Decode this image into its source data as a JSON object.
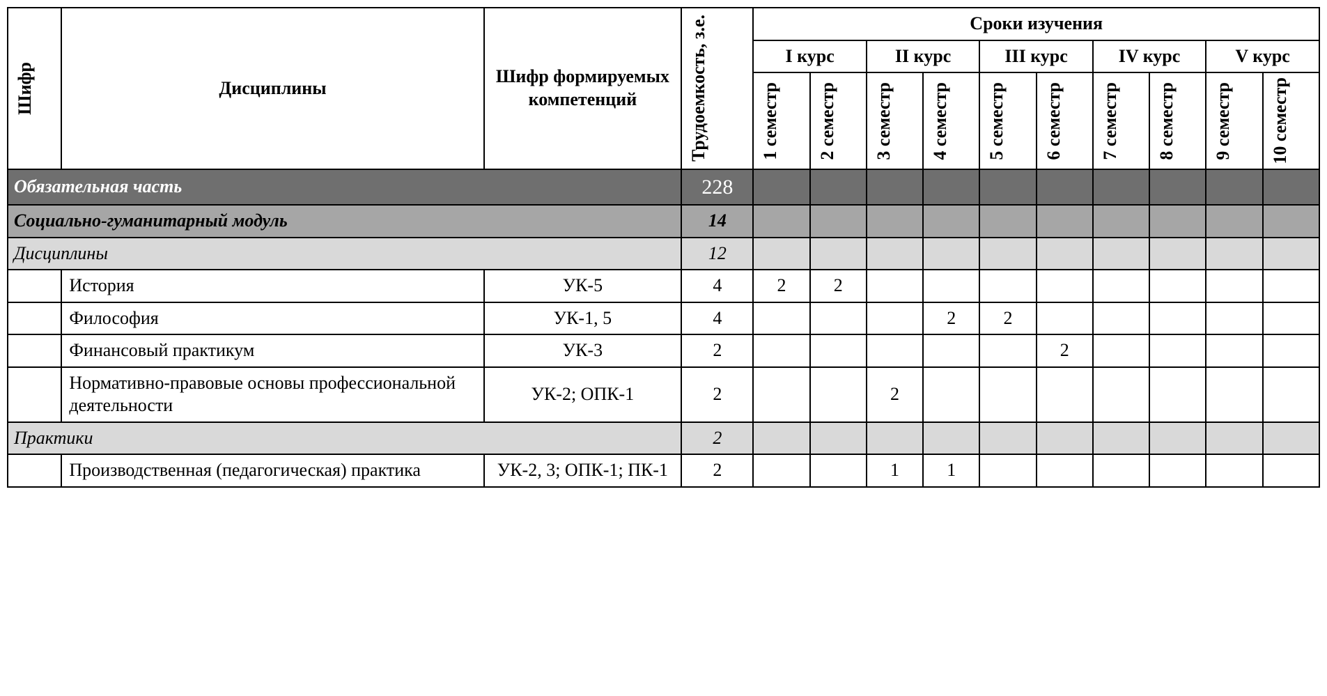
{
  "headers": {
    "shifr": "Шифр",
    "disciplines": "Дисциплины",
    "competencies": "Шифр формируемых компетенций",
    "workload": "Трудоемкость, з.е.",
    "study_period": "Сроки изучения",
    "courses": [
      "I курс",
      "II курс",
      "III курс",
      "IV курс",
      "V курс"
    ],
    "semesters": [
      "1 семестр",
      "2 семестр",
      "3 семестр",
      "4 семестр",
      "5 семестр",
      "6 семестр",
      "7 семестр",
      "8 семестр",
      "9 семестр",
      "10 семестр"
    ]
  },
  "sections": [
    {
      "type": "dark",
      "label": "Обязательная часть",
      "value": "228"
    },
    {
      "type": "mid",
      "label": "Социально-гуманитарный модуль",
      "value": "14"
    },
    {
      "type": "light",
      "label": "Дисциплины",
      "value": "12"
    }
  ],
  "rows": [
    {
      "shifr": "",
      "name": "История",
      "comp": "УК-5",
      "trud": "4",
      "s": [
        "2",
        "2",
        "",
        "",
        "",
        "",
        "",
        "",
        "",
        ""
      ]
    },
    {
      "shifr": "",
      "name": "Философия",
      "comp": "УК-1, 5",
      "trud": "4",
      "s": [
        "",
        "",
        "",
        "2",
        "2",
        "",
        "",
        "",
        "",
        ""
      ]
    },
    {
      "shifr": "",
      "name": "Финансовый практикум",
      "comp": "УК-3",
      "trud": "2",
      "s": [
        "",
        "",
        "",
        "",
        "",
        "2",
        "",
        "",
        "",
        ""
      ]
    },
    {
      "shifr": "",
      "name": "Нормативно-правовые основы профессиональной деятельности",
      "comp": "УК-2; ОПК-1",
      "trud": "2",
      "s": [
        "",
        "",
        "2",
        "",
        "",
        "",
        "",
        "",
        "",
        ""
      ]
    }
  ],
  "sections2": [
    {
      "type": "light",
      "label": "Практики",
      "value": "2"
    }
  ],
  "rows2": [
    {
      "shifr": "",
      "name": "Производственная (педагогическая) практика",
      "comp": "УК-2, 3; ОПК-1; ПК-1",
      "trud": "2",
      "s": [
        "",
        "",
        "1",
        "1",
        "",
        "",
        "",
        "",
        "",
        ""
      ]
    }
  ],
  "styles": {
    "section_colors": {
      "dark": "#6f6f6f",
      "mid": "#a6a6a6",
      "light": "#d9d9d9"
    },
    "border_color": "#000000",
    "background": "#ffffff",
    "font_family": "Georgia",
    "base_font_size": 26
  }
}
